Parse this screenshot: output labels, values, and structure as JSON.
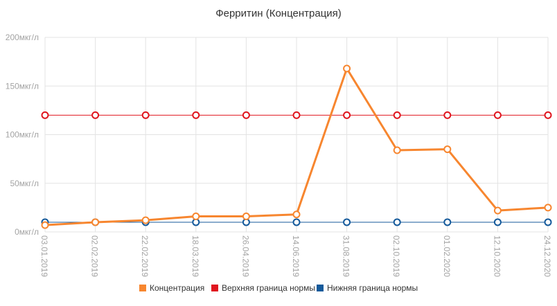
{
  "chart_data": {
    "type": "line",
    "title": "Ферритин (Концентрация)",
    "x": [
      "03.01.2019",
      "02.02.2019",
      "22.02.2019",
      "18.03.2019",
      "26.04.2019",
      "14.06.2019",
      "31.08.2019",
      "02.10.2019",
      "01.02.2020",
      "12.10.2020",
      "24.12.2020"
    ],
    "y_ticks": [
      "0мкг/л",
      "50мкг/л",
      "100мкг/л",
      "150мкг/л",
      "200мкг/л"
    ],
    "ylim": [
      0,
      200
    ],
    "grid": true,
    "legend_position": "bottom",
    "series": [
      {
        "name": "Концентрация",
        "color": "#f7862f",
        "values": [
          7,
          10,
          12,
          16,
          16,
          18,
          168,
          84,
          85,
          22,
          25
        ]
      },
      {
        "name": "Верхняя граница нормы",
        "color": "#e0161f",
        "values": [
          120,
          120,
          120,
          120,
          120,
          120,
          120,
          120,
          120,
          120,
          120
        ]
      },
      {
        "name": "Нижняя граница нормы",
        "color": "#155a9b",
        "values": [
          10,
          10,
          10,
          10,
          10,
          10,
          10,
          10,
          10,
          10,
          10
        ]
      }
    ]
  }
}
